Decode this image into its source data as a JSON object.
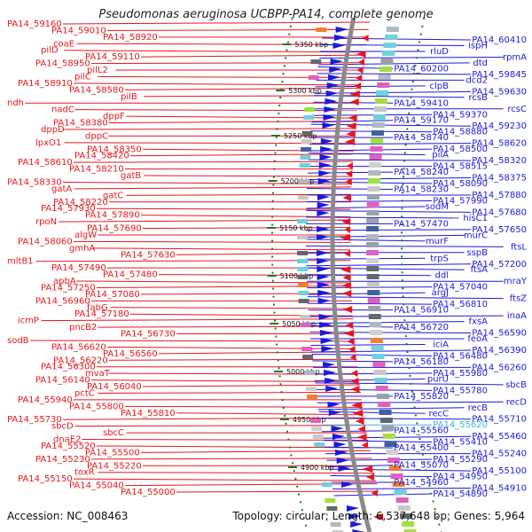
{
  "title": "Pseudomonas aeruginosa UCBPP-PA14, complete genome",
  "accession": "Accession: NC_008463",
  "summary": "Topology: circular; Length: 6,537,648 bp; Genes: 5,964",
  "colors": {
    "forward": "#e8161b",
    "reverse": "#1a1adc",
    "highlight": "#39b3df",
    "backbone": "#8a8a8a",
    "tick": "#1f7a1f"
  },
  "ticks": [
    "5350 kbp",
    "5300 kbp",
    "5250 kbp",
    "5200 kbp",
    "5150 kbp",
    "5100 kbp",
    "5050 kbp",
    "5000 kbp",
    "4950 kbp",
    "4900 kbp"
  ],
  "left_labels": [
    "PA14_59160",
    "PA14_59010",
    "PA14_58920",
    "coaE",
    "pilD",
    "PA14_59110",
    "PA14_58950",
    "pilL2",
    "pilC",
    "PA14_58910",
    "PA14_58580",
    "pilB",
    "ndh",
    "nadC",
    "dppF",
    "PA14_58380",
    "dppD",
    "dppC",
    "lpxO1",
    "PA14_58350",
    "PA14_58420",
    "PA14_58610",
    "PA14_58210",
    "gatB",
    "PA14_58330",
    "gatA",
    "gatC",
    "PA14_58220",
    "PA14_57930",
    "PA14_57890",
    "rpoN",
    "PA14_57690",
    "algW",
    "PA14_58060",
    "gmhA",
    "PA14_57630",
    "mltB1",
    "PA14_57490",
    "PA14_57480",
    "apbA",
    "PA14_57250",
    "PA14_57080",
    "PA14_56960",
    "fabG",
    "PA14_57180",
    "icmP",
    "pncB2",
    "PA14_56730",
    "sodB",
    "PA14_56620",
    "PA14_56560",
    "PA14_56220",
    "PA14_56300",
    "mvaT",
    "PA14_56140",
    "PA14_56040",
    "pctC",
    "PA14_55940",
    "PA14_55800",
    "PA14_55810",
    "PA14_55730",
    "sbcD",
    "sbcC",
    "dnaE2",
    "PA14_55520",
    "PA14_55500",
    "PA14_55230",
    "PA14_55220",
    "toxR",
    "PA14_55150",
    "PA14_55040",
    "PA14_55000"
  ],
  "right_labels": [
    "PA14_60410",
    "ispH",
    "rluD",
    "rpmA",
    "dtd",
    "PA14_60200",
    "PA14_59845",
    "dcd2",
    "clpB",
    "PA14_59630",
    "rcsB",
    "PA14_59410",
    "rcsC",
    "PA14_59370",
    "PA14_59170",
    "PA14_59230",
    "PA14_58880",
    "PA14_58740",
    "PA14_58620",
    "PA14_58500",
    "pilA",
    "PA14_58320",
    "PA14_58515",
    "PA14_58240",
    "PA14_58375",
    "PA14_58090",
    "PA14_58230",
    "PA14_57880",
    "PA14_57990",
    "sodM",
    "PA14_57680",
    "hisC1",
    "PA14_57470",
    "PA14_57650",
    "murC",
    "murF",
    "ftsL",
    "sspB",
    "trpS",
    "PA14_57200",
    "ftsA",
    "ddl",
    "mraY",
    "PA14_57040",
    "argJ",
    "ftsZ",
    "PA14_56810",
    "PA14_56910",
    "inaA",
    "fxsA",
    "PA14_56720",
    "PA14_56590",
    "feoA",
    "iciA",
    "PA14_56390",
    "PA14_56480",
    "PA14_56180",
    "PA14_56260",
    "PA14_55980",
    "purU",
    "sbcB",
    "PA14_55780",
    "PA14_55820",
    "recD",
    "recB",
    "recC",
    "PA14_55710",
    "PA14_55620",
    "PA14_55560",
    "PA14_55460",
    "PA14_55410",
    "PA14_55400",
    "PA14_55240",
    "PA14_55290",
    "PA14_55070",
    "PA14_55100",
    "PA14_54950",
    "PA14_54960",
    "PA14_54910",
    "PA14_54890"
  ]
}
